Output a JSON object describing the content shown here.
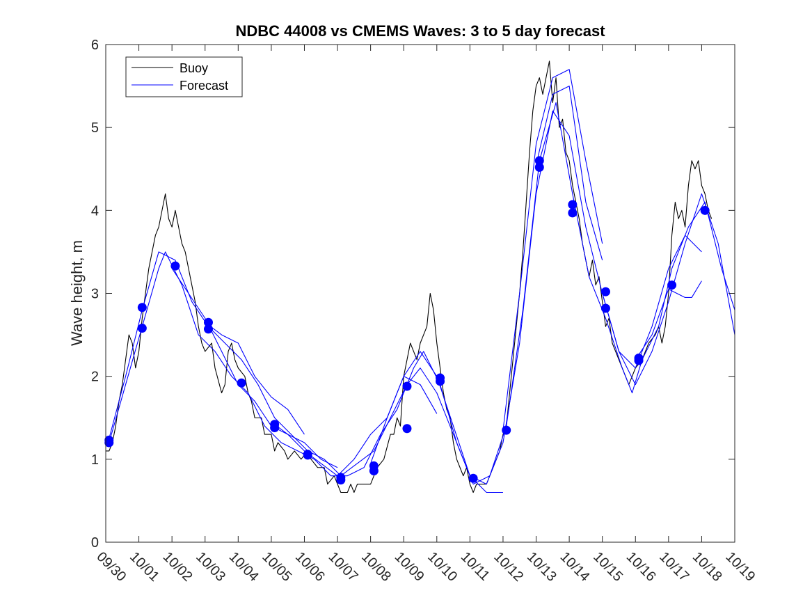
{
  "chart_data": {
    "type": "line",
    "title": "NDBC 44008 vs CMEMS Waves: 3 to 5 day forecast",
    "xlabel": "",
    "ylabel": "Wave height, m",
    "x_ticks": [
      "09/30",
      "10/01",
      "10/02",
      "10/03",
      "10/04",
      "10/05",
      "10/06",
      "10/07",
      "10/08",
      "10/09",
      "10/10",
      "10/11",
      "10/12",
      "10/13",
      "10/14",
      "10/15",
      "10/16",
      "10/17",
      "10/18",
      "10/19"
    ],
    "xlim": [
      0,
      19
    ],
    "ylim": [
      0,
      6
    ],
    "y_ticks": [
      0,
      1,
      2,
      3,
      4,
      5,
      6
    ],
    "legend": {
      "position": "top-left",
      "entries": [
        "Buoy",
        "Forecast"
      ]
    },
    "colors": {
      "buoy": "#000000",
      "forecast": "#0000ff",
      "points": "#0000ff"
    },
    "buoy": {
      "name": "Buoy",
      "points": [
        [
          0.0,
          1.1
        ],
        [
          0.1,
          1.1
        ],
        [
          0.2,
          1.2
        ],
        [
          0.3,
          1.4
        ],
        [
          0.4,
          1.7
        ],
        [
          0.5,
          1.9
        ],
        [
          0.6,
          2.2
        ],
        [
          0.7,
          2.5
        ],
        [
          0.8,
          2.4
        ],
        [
          0.9,
          2.1
        ],
        [
          1.0,
          2.3
        ],
        [
          1.1,
          2.7
        ],
        [
          1.2,
          3.0
        ],
        [
          1.3,
          3.3
        ],
        [
          1.4,
          3.5
        ],
        [
          1.5,
          3.7
        ],
        [
          1.6,
          3.8
        ],
        [
          1.7,
          4.0
        ],
        [
          1.8,
          4.2
        ],
        [
          1.9,
          3.9
        ],
        [
          2.0,
          3.8
        ],
        [
          2.1,
          4.0
        ],
        [
          2.2,
          3.8
        ],
        [
          2.3,
          3.6
        ],
        [
          2.4,
          3.5
        ],
        [
          2.5,
          3.3
        ],
        [
          2.6,
          3.1
        ],
        [
          2.7,
          2.9
        ],
        [
          2.8,
          2.6
        ],
        [
          2.9,
          2.4
        ],
        [
          3.0,
          2.3
        ],
        [
          3.2,
          2.4
        ],
        [
          3.3,
          2.1
        ],
        [
          3.5,
          1.8
        ],
        [
          3.6,
          1.9
        ],
        [
          3.7,
          2.3
        ],
        [
          3.8,
          2.4
        ],
        [
          3.9,
          2.2
        ],
        [
          4.0,
          2.1
        ],
        [
          4.2,
          2.0
        ],
        [
          4.3,
          1.8
        ],
        [
          4.4,
          1.7
        ],
        [
          4.5,
          1.5
        ],
        [
          4.7,
          1.5
        ],
        [
          4.8,
          1.3
        ],
        [
          5.0,
          1.3
        ],
        [
          5.1,
          1.1
        ],
        [
          5.2,
          1.2
        ],
        [
          5.4,
          1.1
        ],
        [
          5.5,
          1.0
        ],
        [
          5.7,
          1.1
        ],
        [
          5.9,
          1.0
        ],
        [
          6.1,
          1.1
        ],
        [
          6.2,
          1.0
        ],
        [
          6.4,
          0.9
        ],
        [
          6.6,
          0.9
        ],
        [
          6.7,
          0.7
        ],
        [
          6.9,
          0.8
        ],
        [
          7.0,
          0.7
        ],
        [
          7.1,
          0.6
        ],
        [
          7.3,
          0.6
        ],
        [
          7.4,
          0.7
        ],
        [
          7.5,
          0.6
        ],
        [
          7.6,
          0.7
        ],
        [
          7.8,
          0.7
        ],
        [
          8.0,
          0.7
        ],
        [
          8.2,
          0.9
        ],
        [
          8.4,
          1.0
        ],
        [
          8.6,
          1.3
        ],
        [
          8.7,
          1.3
        ],
        [
          8.8,
          1.5
        ],
        [
          8.9,
          1.4
        ],
        [
          9.0,
          2.0
        ],
        [
          9.1,
          2.2
        ],
        [
          9.2,
          2.4
        ],
        [
          9.3,
          2.3
        ],
        [
          9.4,
          2.2
        ],
        [
          9.5,
          2.4
        ],
        [
          9.6,
          2.5
        ],
        [
          9.7,
          2.6
        ],
        [
          9.8,
          3.0
        ],
        [
          9.9,
          2.8
        ],
        [
          10.0,
          2.4
        ],
        [
          10.1,
          2.1
        ],
        [
          10.2,
          1.8
        ],
        [
          10.3,
          1.6
        ],
        [
          10.4,
          1.5
        ],
        [
          10.5,
          1.2
        ],
        [
          10.6,
          1.0
        ],
        [
          10.7,
          0.9
        ],
        [
          10.8,
          0.8
        ],
        [
          10.9,
          0.9
        ],
        [
          11.0,
          0.7
        ],
        [
          11.1,
          0.6
        ],
        [
          11.2,
          0.7
        ],
        [
          11.3,
          0.7
        ],
        [
          11.5,
          0.7
        ],
        [
          11.6,
          0.8
        ],
        [
          11.8,
          1.0
        ],
        [
          11.9,
          1.1
        ],
        [
          12.0,
          1.3
        ],
        [
          12.1,
          1.4
        ],
        [
          12.2,
          1.8
        ],
        [
          12.3,
          2.2
        ],
        [
          12.4,
          2.6
        ],
        [
          12.5,
          3.0
        ],
        [
          12.6,
          3.5
        ],
        [
          12.7,
          4.1
        ],
        [
          12.8,
          4.7
        ],
        [
          12.9,
          5.2
        ],
        [
          13.0,
          5.5
        ],
        [
          13.1,
          5.6
        ],
        [
          13.2,
          5.4
        ],
        [
          13.3,
          5.6
        ],
        [
          13.4,
          5.8
        ],
        [
          13.5,
          5.3
        ],
        [
          13.6,
          5.6
        ],
        [
          13.7,
          5.0
        ],
        [
          13.8,
          5.1
        ],
        [
          13.9,
          4.7
        ],
        [
          14.0,
          4.6
        ],
        [
          14.1,
          4.3
        ],
        [
          14.2,
          4.1
        ],
        [
          14.3,
          3.9
        ],
        [
          14.4,
          3.6
        ],
        [
          14.5,
          3.4
        ],
        [
          14.6,
          3.2
        ],
        [
          14.7,
          3.4
        ],
        [
          14.8,
          3.1
        ],
        [
          14.9,
          3.2
        ],
        [
          15.0,
          2.9
        ],
        [
          15.1,
          2.6
        ],
        [
          15.2,
          2.7
        ],
        [
          15.3,
          2.4
        ],
        [
          15.4,
          2.3
        ],
        [
          15.5,
          2.2
        ],
        [
          15.6,
          2.1
        ],
        [
          15.7,
          2.0
        ],
        [
          15.8,
          1.9
        ],
        [
          15.9,
          2.0
        ],
        [
          16.0,
          2.1
        ],
        [
          16.2,
          2.2
        ],
        [
          16.4,
          2.4
        ],
        [
          16.6,
          2.5
        ],
        [
          16.7,
          2.6
        ],
        [
          16.8,
          2.4
        ],
        [
          16.9,
          2.6
        ],
        [
          17.0,
          3.0
        ],
        [
          17.1,
          3.7
        ],
        [
          17.2,
          4.1
        ],
        [
          17.3,
          3.9
        ],
        [
          17.4,
          4.0
        ],
        [
          17.5,
          3.8
        ],
        [
          17.6,
          4.3
        ],
        [
          17.7,
          4.6
        ],
        [
          17.8,
          4.5
        ],
        [
          17.9,
          4.6
        ],
        [
          18.0,
          4.3
        ],
        [
          18.1,
          4.2
        ],
        [
          18.2,
          4.0
        ],
        [
          18.3,
          3.9
        ]
      ]
    },
    "forecast_series": [
      {
        "name": "Forecast",
        "points": [
          [
            0.1,
            1.2
          ],
          [
            0.6,
            1.9
          ],
          [
            1.1,
            2.6
          ],
          [
            1.6,
            3.3
          ],
          [
            1.8,
            3.5
          ],
          [
            2.3,
            3.1
          ],
          [
            2.8,
            2.5
          ],
          [
            3.3,
            2.3
          ],
          [
            3.8,
            2.0
          ],
          [
            4.3,
            1.8
          ],
          [
            4.8,
            1.4
          ],
          [
            5.3,
            1.2
          ],
          [
            5.8,
            1.1
          ],
          [
            6.3,
            1.0
          ],
          [
            6.8,
            0.8
          ],
          [
            7.3,
            0.8
          ],
          [
            7.8,
            0.9
          ],
          [
            8.3,
            1.3
          ],
          [
            8.8,
            1.6
          ],
          [
            9.3,
            2.1
          ],
          [
            9.6,
            2.3
          ],
          [
            10.1,
            1.9
          ],
          [
            10.6,
            1.2
          ],
          [
            11.1,
            0.7
          ],
          [
            11.6,
            0.8
          ],
          [
            12.1,
            1.4
          ],
          [
            12.6,
            2.8
          ],
          [
            13.1,
            4.6
          ],
          [
            13.6,
            5.3
          ],
          [
            14.1,
            4.2
          ],
          [
            14.6,
            3.2
          ],
          [
            15.1,
            2.7
          ],
          [
            15.6,
            2.1
          ],
          [
            15.9,
            1.8
          ],
          [
            16.2,
            2.2
          ],
          [
            16.7,
            2.6
          ],
          [
            17.1,
            3.3
          ],
          [
            17.6,
            3.8
          ],
          [
            18.1,
            4.1
          ],
          [
            18.6,
            3.3
          ],
          [
            19.0,
            2.8
          ]
        ]
      },
      {
        "name": "Forecast",
        "points": [
          [
            0.1,
            1.25
          ],
          [
            0.6,
            2.0
          ],
          [
            1.1,
            2.8
          ],
          [
            1.6,
            3.5
          ],
          [
            2.1,
            3.4
          ],
          [
            2.6,
            2.9
          ],
          [
            3.1,
            2.6
          ],
          [
            3.6,
            2.4
          ],
          [
            4.1,
            2.2
          ],
          [
            4.6,
            1.9
          ],
          [
            5.1,
            1.5
          ],
          [
            5.6,
            1.3
          ],
          [
            6.1,
            1.1
          ],
          [
            6.6,
            1.0
          ],
          [
            7.1,
            0.8
          ],
          [
            7.6,
            0.95
          ],
          [
            8.1,
            1.1
          ],
          [
            8.6,
            1.5
          ],
          [
            9.1,
            1.9
          ],
          [
            9.5,
            2.1
          ],
          [
            10.0,
            1.8
          ],
          [
            10.5,
            1.3
          ],
          [
            11.0,
            0.8
          ],
          [
            11.5,
            0.7
          ],
          [
            12.0,
            1.2
          ],
          [
            12.5,
            2.4
          ],
          [
            13.0,
            4.2
          ],
          [
            13.5,
            5.2
          ],
          [
            14.0,
            4.9
          ],
          [
            14.5,
            3.8
          ],
          [
            15.0,
            3.0
          ],
          [
            15.5,
            2.3
          ],
          [
            16.0,
            1.9
          ],
          [
            16.5,
            2.3
          ],
          [
            17.0,
            2.9
          ],
          [
            17.5,
            3.6
          ],
          [
            18.0,
            4.2
          ],
          [
            18.5,
            3.6
          ],
          [
            19.0,
            2.5
          ]
        ]
      },
      {
        "name": "Forecast",
        "points": [
          [
            2.0,
            3.3
          ],
          [
            2.5,
            3.0
          ],
          [
            3.0,
            2.7
          ],
          [
            3.5,
            2.3
          ],
          [
            4.0,
            1.9
          ],
          [
            4.5,
            1.7
          ],
          [
            5.0,
            1.4
          ],
          [
            5.5,
            1.3
          ],
          [
            6.0,
            1.1
          ],
          [
            6.5,
            0.95
          ],
          [
            7.0,
            0.8
          ],
          [
            7.5,
            1.0
          ],
          [
            8.0,
            1.3
          ],
          [
            8.5,
            1.5
          ],
          [
            9.0,
            2.0
          ],
          [
            9.5,
            1.9
          ],
          [
            10.0,
            1.55
          ]
        ]
      },
      {
        "name": "Forecast",
        "points": [
          [
            3.0,
            2.65
          ],
          [
            3.5,
            2.5
          ],
          [
            4.0,
            2.4
          ],
          [
            4.5,
            2.0
          ],
          [
            5.0,
            1.75
          ],
          [
            5.5,
            1.6
          ],
          [
            6.0,
            1.3
          ]
        ]
      },
      {
        "name": "Forecast",
        "points": [
          [
            5.0,
            1.45
          ],
          [
            5.5,
            1.3
          ],
          [
            6.0,
            1.2
          ],
          [
            6.5,
            1.0
          ],
          [
            7.0,
            0.9
          ]
        ]
      },
      {
        "name": "Forecast",
        "points": [
          [
            8.0,
            0.95
          ],
          [
            8.5,
            1.5
          ],
          [
            9.0,
            2.0
          ],
          [
            9.5,
            2.3
          ],
          [
            10.0,
            2.0
          ],
          [
            10.5,
            1.4
          ],
          [
            11.0,
            0.8
          ],
          [
            11.5,
            0.6
          ],
          [
            12.0,
            0.6
          ]
        ]
      },
      {
        "name": "Forecast",
        "points": [
          [
            12.0,
            1.35
          ],
          [
            12.5,
            3.0
          ],
          [
            13.0,
            4.8
          ],
          [
            13.5,
            5.6
          ],
          [
            14.0,
            5.7
          ],
          [
            14.5,
            4.6
          ],
          [
            15.0,
            3.6
          ]
        ]
      },
      {
        "name": "Forecast",
        "points": [
          [
            13.0,
            4.55
          ],
          [
            13.5,
            5.4
          ],
          [
            14.0,
            5.5
          ],
          [
            14.5,
            4.1
          ],
          [
            15.0,
            3.4
          ]
        ]
      },
      {
        "name": "Forecast",
        "points": [
          [
            15.0,
            3.0
          ],
          [
            15.5,
            2.3
          ],
          [
            16.0,
            2.1
          ],
          [
            16.5,
            2.6
          ],
          [
            17.0,
            3.3
          ],
          [
            17.5,
            3.7
          ],
          [
            18.0,
            3.5
          ]
        ]
      },
      {
        "name": "Forecast",
        "points": [
          [
            16.0,
            2.2
          ],
          [
            16.5,
            2.5
          ],
          [
            17.0,
            3.05
          ],
          [
            17.5,
            2.95
          ],
          [
            17.7,
            2.95
          ],
          [
            18.0,
            3.15
          ]
        ]
      }
    ],
    "forecast_points": [
      [
        0.1,
        1.2
      ],
      [
        0.1,
        1.23
      ],
      [
        1.1,
        2.58
      ],
      [
        1.1,
        2.83
      ],
      [
        2.1,
        3.33
      ],
      [
        3.1,
        2.65
      ],
      [
        3.1,
        2.57
      ],
      [
        4.1,
        1.92
      ],
      [
        5.1,
        1.42
      ],
      [
        5.1,
        1.38
      ],
      [
        6.1,
        1.06
      ],
      [
        6.1,
        1.05
      ],
      [
        7.1,
        0.78
      ],
      [
        7.1,
        0.75
      ],
      [
        8.1,
        0.92
      ],
      [
        8.1,
        0.86
      ],
      [
        9.1,
        1.88
      ],
      [
        9.1,
        1.37
      ],
      [
        10.1,
        1.98
      ],
      [
        10.1,
        1.94
      ],
      [
        11.1,
        0.77
      ],
      [
        12.1,
        1.35
      ],
      [
        13.1,
        4.6
      ],
      [
        13.1,
        4.52
      ],
      [
        14.1,
        4.07
      ],
      [
        14.1,
        3.97
      ],
      [
        15.1,
        3.02
      ],
      [
        15.1,
        2.82
      ],
      [
        16.1,
        2.22
      ],
      [
        16.1,
        2.19
      ],
      [
        17.1,
        3.1
      ],
      [
        18.1,
        4.0
      ]
    ]
  }
}
